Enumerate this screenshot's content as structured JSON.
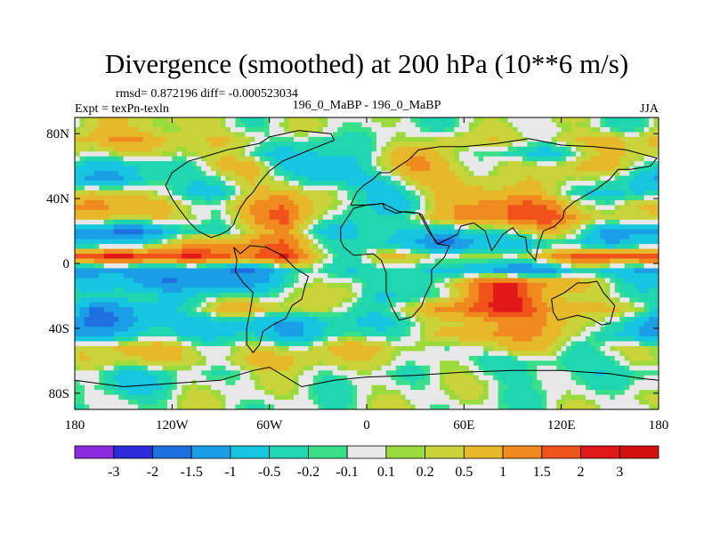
{
  "chart_data": {
    "type": "heatmap",
    "title": "Divergence (smoothed) at 200 hPa (10**6 m/s)",
    "stats_line": "rmsd= 0.872196 diff= -0.000523034",
    "expt_line": "Expt = texPn-texln",
    "center_label": "196_0_MaBP - 196_0_MaBP",
    "season_label": "JJA",
    "x_ticks": [
      {
        "value": -180,
        "label": "180"
      },
      {
        "value": -120,
        "label": "120W"
      },
      {
        "value": -60,
        "label": "60W"
      },
      {
        "value": 0,
        "label": "0"
      },
      {
        "value": 60,
        "label": "60E"
      },
      {
        "value": 120,
        "label": "120E"
      },
      {
        "value": 180,
        "label": "180"
      }
    ],
    "y_ticks": [
      {
        "value": 80,
        "label": "80N"
      },
      {
        "value": 40,
        "label": "40N"
      },
      {
        "value": 0,
        "label": "0"
      },
      {
        "value": -40,
        "label": "40S"
      },
      {
        "value": -80,
        "label": "80S"
      }
    ],
    "xlim": [
      -180,
      180
    ],
    "ylim": [
      -90,
      90
    ],
    "colorbar_labels": [
      "-3",
      "-2",
      "-1.5",
      "-1",
      "-0.5",
      "-0.2",
      "-0.1",
      "0.1",
      "0.2",
      "0.5",
      "1",
      "1.5",
      "2",
      "3"
    ],
    "colorbar_colors": [
      "#8a2be2",
      "#2b2bdb",
      "#1e6fe0",
      "#1a9ee6",
      "#16c5e0",
      "#1fd6b0",
      "#38e08a",
      "#e8e8e8",
      "#9bdc3c",
      "#c8d43a",
      "#e6b82a",
      "#f08a1e",
      "#f0521a",
      "#e01818",
      "#d40f0f"
    ],
    "land_outline_color": "#000000",
    "field_rows": [
      {
        "lat": 84,
        "values": [
          0.3,
          0.2,
          0.3,
          0.4,
          0.2,
          0,
          0,
          0,
          0,
          0,
          0,
          0,
          0,
          0,
          0,
          0,
          0,
          0
        ]
      },
      {
        "lat": 76,
        "values": [
          0.6,
          1,
          1,
          0.6,
          0.4,
          0.2,
          -0.3,
          -0.5,
          0,
          0.1,
          0.1,
          0.5,
          0.2,
          0.1,
          0.3,
          0.6,
          0.8,
          0.6
        ]
      },
      {
        "lat": 68,
        "values": [
          0.2,
          0.3,
          0.5,
          0.4,
          0.1,
          -0.3,
          -0.7,
          -0.6,
          -0.2,
          0.4,
          0.7,
          0.3,
          -0.2,
          -0.5,
          -0.4,
          0,
          0.4,
          0.5
        ]
      },
      {
        "lat": 60,
        "values": [
          -0.4,
          -0.6,
          -0.5,
          -0.3,
          0.3,
          0.6,
          -0.3,
          -0.8,
          -0.6,
          0.4,
          0.9,
          0.5,
          0.1,
          0.3,
          0.5,
          0.6,
          0.3,
          -0.2
        ]
      },
      {
        "lat": 52,
        "values": [
          -0.8,
          -1,
          -0.6,
          -0.4,
          -0.2,
          0.5,
          0.3,
          -0.6,
          -1,
          -0.4,
          0.4,
          0.8,
          0.6,
          0.3,
          0.4,
          0.2,
          -0.4,
          -0.7
        ]
      },
      {
        "lat": 44,
        "values": [
          0.5,
          0.4,
          -0.3,
          -0.6,
          -0.5,
          0.4,
          1,
          0.2,
          -0.6,
          -0.8,
          0,
          0.7,
          1,
          0.5,
          0.2,
          -0.3,
          -0.8,
          -0.5
        ]
      },
      {
        "lat": 36,
        "values": [
          1,
          1.2,
          0.6,
          0.2,
          0.4,
          1,
          1.4,
          0.4,
          -0.4,
          -0.7,
          -0.2,
          0.8,
          1.2,
          1.5,
          1.2,
          0.6,
          0,
          0.5
        ]
      },
      {
        "lat": 28,
        "values": [
          0.3,
          0.5,
          0.6,
          0.2,
          0.1,
          0.8,
          1.5,
          0.3,
          -0.5,
          -0.3,
          0.4,
          0.6,
          1,
          1.6,
          1.8,
          1.2,
          0.6,
          0.2
        ]
      },
      {
        "lat": 20,
        "values": [
          -1.5,
          -1.5,
          -1,
          -0.5,
          -0.3,
          0.3,
          0.8,
          -0.2,
          -0.6,
          -0.3,
          -0.5,
          -1.2,
          -0.5,
          0.3,
          0.8,
          0.2,
          -1.2,
          -1.5
        ]
      },
      {
        "lat": 12,
        "values": [
          -0.8,
          -0.3,
          0.2,
          0.5,
          0.8,
          1.3,
          1.5,
          0.3,
          -0.3,
          -0.8,
          -1,
          -2,
          -1.2,
          -0.6,
          -0.4,
          -0.6,
          -1,
          -0.8
        ]
      },
      {
        "lat": 4,
        "values": [
          2,
          2.2,
          2,
          1.8,
          1.6,
          1.8,
          2.2,
          0.5,
          -0.3,
          0.2,
          0.5,
          0.3,
          0.2,
          0.4,
          0.8,
          1.4,
          1.8,
          2
        ]
      },
      {
        "lat": -4,
        "values": [
          -1.2,
          -1.5,
          -1.3,
          -1.2,
          -1.5,
          -1.2,
          -0.6,
          -0.3,
          -0.5,
          -0.6,
          -0.3,
          -0.2,
          -1.2,
          -1.6,
          -1.5,
          -0.8,
          -0.5,
          -0.8
        ]
      },
      {
        "lat": -12,
        "values": [
          -0.8,
          -1.2,
          -1.4,
          -1.2,
          -1.3,
          -1,
          -0.4,
          -0.2,
          0.2,
          -0.2,
          -0.4,
          0.5,
          1.5,
          1.8,
          1.2,
          0.6,
          0.2,
          -0.3
        ]
      },
      {
        "lat": -20,
        "values": [
          -0.4,
          -0.5,
          -0.3,
          -0.2,
          -0.3,
          -0.2,
          0,
          0.1,
          0.5,
          -0.4,
          -0.6,
          0.2,
          1.4,
          2,
          1,
          0.5,
          0.1,
          -0.2
        ]
      },
      {
        "lat": -28,
        "values": [
          -1.3,
          -1.2,
          -0.6,
          0,
          0.5,
          0.6,
          0.4,
          0.2,
          0,
          0,
          0.2,
          1.2,
          1.8,
          2.2,
          1.5,
          0.8,
          0.4,
          0.2
        ]
      },
      {
        "lat": -36,
        "values": [
          -1.6,
          -1.2,
          -0.8,
          -0.6,
          -0.8,
          -1,
          -0.8,
          -0.6,
          -0.5,
          -0.6,
          -0.4,
          0.2,
          1,
          1.2,
          1.2,
          0.5,
          -0.5,
          -1
        ]
      },
      {
        "lat": -44,
        "values": [
          -0.8,
          -0.6,
          -0.6,
          -0.7,
          -0.6,
          -0.6,
          -0.8,
          -0.5,
          -0.4,
          -0.3,
          -0.2,
          0.6,
          1.4,
          1.2,
          0.8,
          0.2,
          -0.8,
          -1.2
        ]
      },
      {
        "lat": -52,
        "values": [
          0.4,
          0.7,
          0.5,
          0.2,
          0.2,
          0.4,
          0.2,
          0.3,
          0.5,
          0.5,
          0.3,
          -0.2,
          0.4,
          0.6,
          0.2,
          -0.3,
          0.1,
          0.3
        ]
      },
      {
        "lat": -60,
        "values": [
          0.2,
          0.4,
          0.5,
          0.4,
          0.5,
          0.6,
          0.6,
          0.3,
          0.2,
          0.4,
          0.3,
          0,
          -0.3,
          -0.4,
          -0.5,
          -0.3,
          0,
          0.2
        ]
      },
      {
        "lat": -68,
        "values": [
          -0.4,
          -0.6,
          -0.3,
          -0.1,
          0,
          0,
          0,
          0,
          0,
          0,
          0,
          0,
          -0.2,
          -0.3,
          -0.2,
          0,
          -0.2,
          -0.4
        ]
      },
      {
        "lat": -76,
        "values": [
          -0.3,
          -0.5,
          -0.3,
          0,
          0,
          0,
          0,
          0,
          0,
          0,
          0,
          0,
          0,
          0,
          0,
          0,
          -0.1,
          -0.3
        ]
      },
      {
        "lat": -84,
        "values": [
          0,
          0,
          0,
          0,
          0,
          0,
          0,
          0,
          0,
          0,
          0,
          0,
          0,
          0,
          0,
          0,
          0,
          0
        ]
      }
    ],
    "field_lons": [
      -170,
      -150,
      -130,
      -110,
      -90,
      -70,
      -50,
      -30,
      -10,
      10,
      30,
      50,
      70,
      90,
      110,
      130,
      150,
      170
    ],
    "land_outlines": [
      [
        [
          -124,
          48
        ],
        [
          -120,
          56
        ],
        [
          -110,
          63
        ],
        [
          -96,
          67
        ],
        [
          -86,
          70
        ],
        [
          -76,
          72
        ],
        [
          -66,
          74
        ],
        [
          -60,
          78
        ],
        [
          -42,
          82
        ],
        [
          -22,
          80
        ],
        [
          -20,
          76
        ],
        [
          -35,
          70
        ],
        [
          -52,
          63
        ],
        [
          -60,
          57
        ],
        [
          -66,
          50
        ],
        [
          -70,
          44
        ],
        [
          -74,
          40
        ],
        [
          -78,
          34
        ],
        [
          -81,
          27
        ],
        [
          -82,
          24
        ],
        [
          -86,
          20
        ],
        [
          -90,
          18
        ],
        [
          -96,
          16
        ],
        [
          -104,
          20
        ],
        [
          -110,
          26
        ],
        [
          -116,
          34
        ],
        [
          -120,
          40
        ],
        [
          -124,
          48
        ]
      ],
      [
        [
          -82,
          10
        ],
        [
          -78,
          6
        ],
        [
          -72,
          11
        ],
        [
          -62,
          10
        ],
        [
          -52,
          5
        ],
        [
          -44,
          -3
        ],
        [
          -36,
          -8
        ],
        [
          -38,
          -14
        ],
        [
          -40,
          -22
        ],
        [
          -46,
          -26
        ],
        [
          -50,
          -34
        ],
        [
          -58,
          -38
        ],
        [
          -64,
          -42
        ],
        [
          -66,
          -50
        ],
        [
          -70,
          -55
        ],
        [
          -74,
          -50
        ],
        [
          -74,
          -40
        ],
        [
          -72,
          -30
        ],
        [
          -70,
          -18
        ],
        [
          -76,
          -12
        ],
        [
          -81,
          -5
        ],
        [
          -80,
          2
        ],
        [
          -82,
          10
        ]
      ],
      [
        [
          -10,
          36
        ],
        [
          -6,
          44
        ],
        [
          -2,
          48
        ],
        [
          4,
          52
        ],
        [
          8,
          56
        ],
        [
          14,
          56
        ],
        [
          20,
          60
        ],
        [
          26,
          64
        ],
        [
          32,
          70
        ],
        [
          45,
          72
        ],
        [
          60,
          72
        ],
        [
          80,
          74
        ],
        [
          100,
          77
        ],
        [
          120,
          73
        ],
        [
          140,
          72
        ],
        [
          160,
          70
        ],
        [
          175,
          66
        ],
        [
          179,
          65
        ],
        [
          175,
          60
        ],
        [
          163,
          58
        ],
        [
          155,
          58
        ],
        [
          150,
          52
        ],
        [
          142,
          46
        ],
        [
          135,
          42
        ],
        [
          128,
          38
        ],
        [
          122,
          33
        ],
        [
          121,
          28
        ],
        [
          116,
          23
        ],
        [
          109,
          20
        ],
        [
          106,
          12
        ],
        [
          104,
          2
        ],
        [
          99,
          8
        ],
        [
          98,
          16
        ],
        [
          94,
          17
        ],
        [
          90,
          22
        ],
        [
          84,
          18
        ],
        [
          80,
          12
        ],
        [
          77,
          8
        ],
        [
          73,
          20
        ],
        [
          66,
          25
        ],
        [
          58,
          23
        ],
        [
          56,
          18
        ],
        [
          52,
          16
        ],
        [
          44,
          12
        ],
        [
          42,
          14
        ],
        [
          38,
          22
        ],
        [
          34,
          30
        ],
        [
          32,
          31
        ],
        [
          24,
          32
        ],
        [
          18,
          31
        ],
        [
          11,
          34
        ],
        [
          10,
          37
        ],
        [
          2,
          36
        ],
        [
          -6,
          36
        ],
        [
          -10,
          36
        ]
      ],
      [
        [
          -16,
          14
        ],
        [
          -16,
          22
        ],
        [
          -12,
          28
        ],
        [
          -8,
          34
        ],
        [
          0,
          36
        ],
        [
          10,
          37
        ],
        [
          20,
          32
        ],
        [
          32,
          31
        ],
        [
          34,
          28
        ],
        [
          38,
          20
        ],
        [
          44,
          12
        ],
        [
          51,
          11
        ],
        [
          48,
          4
        ],
        [
          40,
          -4
        ],
        [
          40,
          -12
        ],
        [
          36,
          -20
        ],
        [
          34,
          -26
        ],
        [
          28,
          -33
        ],
        [
          20,
          -35
        ],
        [
          16,
          -28
        ],
        [
          12,
          -18
        ],
        [
          12,
          -6
        ],
        [
          9,
          2
        ],
        [
          4,
          6
        ],
        [
          -8,
          5
        ],
        [
          -14,
          10
        ],
        [
          -16,
          14
        ]
      ],
      [
        [
          114,
          -22
        ],
        [
          122,
          -18
        ],
        [
          130,
          -12
        ],
        [
          136,
          -12
        ],
        [
          142,
          -11
        ],
        [
          146,
          -18
        ],
        [
          153,
          -26
        ],
        [
          150,
          -37
        ],
        [
          145,
          -38
        ],
        [
          138,
          -34
        ],
        [
          130,
          -32
        ],
        [
          118,
          -35
        ],
        [
          115,
          -30
        ],
        [
          114,
          -22
        ]
      ],
      [
        [
          -180,
          -72
        ],
        [
          -150,
          -76
        ],
        [
          -120,
          -74
        ],
        [
          -90,
          -72
        ],
        [
          -70,
          -66
        ],
        [
          -60,
          -64
        ],
        [
          -40,
          -76
        ],
        [
          -20,
          -72
        ],
        [
          0,
          -70
        ],
        [
          30,
          -69
        ],
        [
          60,
          -67
        ],
        [
          90,
          -66
        ],
        [
          120,
          -66
        ],
        [
          150,
          -68
        ],
        [
          170,
          -71
        ],
        [
          180,
          -72
        ]
      ]
    ]
  }
}
